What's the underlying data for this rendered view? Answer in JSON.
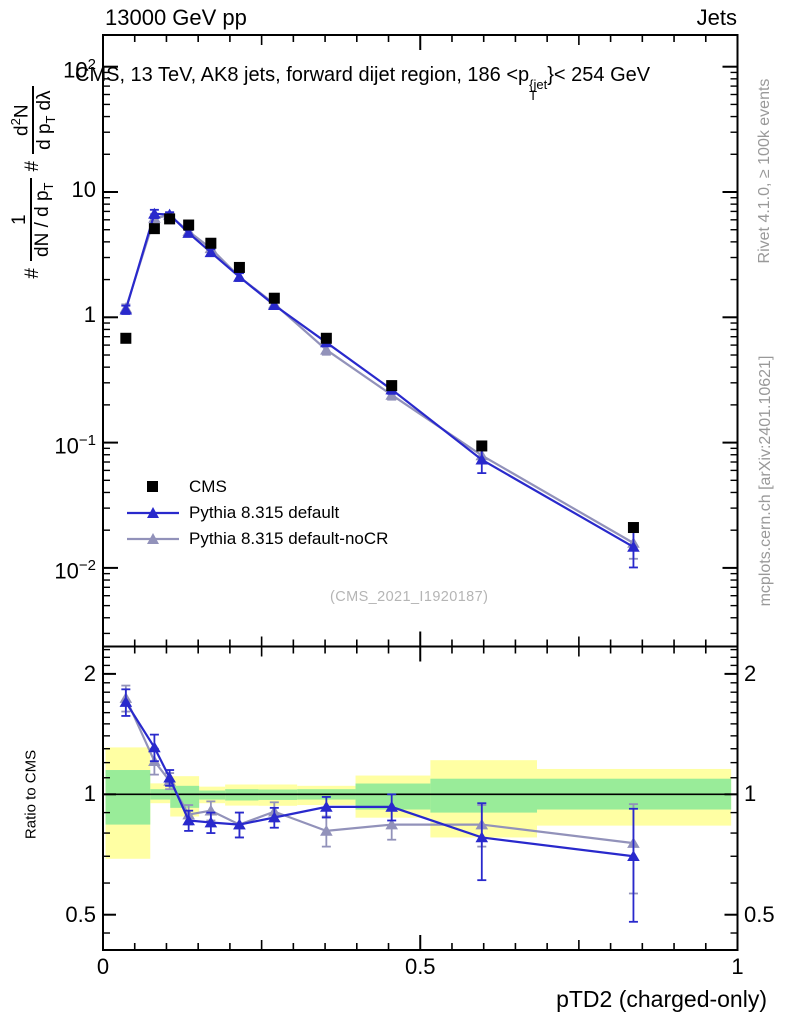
{
  "texts": {
    "header_left": "13000 GeV pp",
    "header_right": "Jets",
    "title_pre": "CMS, 13 TeV, AK8 jets, forward dijet region, 186 <p",
    "title_sup": "{jet",
    "title_sub": "T",
    "title_post": "}< 254 GeV",
    "ylabel": {
      "hash1": "#",
      "f1_num": "1",
      "f1_den_main": "dN / d p",
      "f1_den_sub": "T",
      "hash2": "#",
      "f2_num_main": "d",
      "f2_num_sup": "2",
      "f2_num_post": "N",
      "f2_den_main": "d p",
      "f2_den_sub": "T",
      "f2_den_post": "dλ"
    },
    "watermark": "(CMS_2021_I1920187)",
    "side_top": "Rivet 4.1.0, ≥ 100k events",
    "side_bottom": "mcplots.cern.ch [arXiv:2401.10621]"
  },
  "chart_data": {
    "type": "line",
    "title": "CMS, 13 TeV, AK8 jets, forward dijet region, 186 < pT{jet} < 254 GeV",
    "xlabel": "pTD2 (charged-only)",
    "ylabel_main": "# 1/(dN/dpT) # d2N/(dpT dλ)",
    "ylabel_ratio": "Ratio to CMS",
    "x": [
      0.036,
      0.081,
      0.105,
      0.135,
      0.17,
      0.215,
      0.27,
      0.352,
      0.455,
      0.597,
      0.836
    ],
    "series": [
      {
        "name": "CMS",
        "color": "#000000",
        "marker": "square",
        "values": [
          0.68,
          5.1,
          6.1,
          5.45,
          3.9,
          2.5,
          1.42,
          0.68,
          0.285,
          0.094,
          0.021
        ]
      },
      {
        "name": "Pythia 8.315 default",
        "color": "#2929cc",
        "marker": "triangle",
        "values": [
          1.15,
          6.7,
          6.6,
          4.7,
          3.3,
          2.1,
          1.25,
          0.63,
          0.265,
          0.073,
          0.0147
        ],
        "ratio": [
          1.7,
          1.31,
          1.1,
          0.86,
          0.85,
          0.84,
          0.875,
          0.93,
          0.93,
          0.78,
          0.7
        ],
        "ratio_err": [
          0.13,
          0.1,
          0.05,
          0.05,
          0.05,
          0.06,
          0.05,
          0.055,
          0.07,
          0.17,
          0.22
        ]
      },
      {
        "name": "Pythia 8.315 default-noCR",
        "color": "#9292ba",
        "marker": "triangle",
        "values": [
          1.18,
          6.2,
          6.5,
          4.85,
          3.55,
          2.1,
          1.28,
          0.55,
          0.24,
          0.079,
          0.0158
        ],
        "ratio": [
          1.74,
          1.21,
          1.08,
          0.89,
          0.91,
          0.84,
          0.905,
          0.81,
          0.84,
          0.84,
          0.755
        ],
        "ratio_err": [
          0.13,
          0.09,
          0.05,
          0.05,
          0.05,
          0.06,
          0.05,
          0.07,
          0.07,
          0.1,
          0.19
        ]
      }
    ],
    "uncertainty_bands": {
      "yellow_color": "#ffffa3",
      "green_color": "#99ec99",
      "segments": [
        {
          "x0": 0.004,
          "x1": 0.0745,
          "ylo": 0.69,
          "yhi": 1.31,
          "glo": 0.84,
          "ghi": 1.15
        },
        {
          "x0": 0.0745,
          "x1": 0.106,
          "ylo": 0.95,
          "yhi": 1.065,
          "glo": 0.97,
          "ghi": 1.03
        },
        {
          "x0": 0.106,
          "x1": 0.1515,
          "ylo": 0.88,
          "yhi": 1.11,
          "glo": 0.925,
          "ghi": 1.05
        },
        {
          "x0": 0.1515,
          "x1": 0.1925,
          "ylo": 0.95,
          "yhi": 1.045,
          "glo": 0.97,
          "ghi": 1.022
        },
        {
          "x0": 0.1925,
          "x1": 0.245,
          "ylo": 0.937,
          "yhi": 1.058,
          "glo": 0.965,
          "ghi": 1.03
        },
        {
          "x0": 0.245,
          "x1": 0.306,
          "ylo": 0.936,
          "yhi": 1.058,
          "glo": 0.968,
          "ghi": 1.028
        },
        {
          "x0": 0.306,
          "x1": 0.398,
          "ylo": 0.94,
          "yhi": 1.05,
          "glo": 0.97,
          "ghi": 1.03
        },
        {
          "x0": 0.398,
          "x1": 0.516,
          "ylo": 0.874,
          "yhi": 1.114,
          "glo": 0.916,
          "ghi": 1.064
        },
        {
          "x0": 0.516,
          "x1": 0.684,
          "ylo": 0.78,
          "yhi": 1.217,
          "glo": 0.9,
          "ghi": 1.094
        },
        {
          "x0": 0.684,
          "x1": 0.99,
          "ylo": 0.835,
          "yhi": 1.157,
          "glo": 0.916,
          "ghi": 1.094
        }
      ]
    },
    "axes": {
      "x": {
        "scale": "linear",
        "range": [
          0,
          1
        ],
        "minor_step": 0.05,
        "ticks": [
          {
            "v": 0,
            "label": "0"
          },
          {
            "v": 0.5,
            "label": "0.5"
          },
          {
            "v": 1,
            "label": "1"
          }
        ],
        "label": "pTD2 (charged-only)"
      },
      "y_main": {
        "scale": "log",
        "range": [
          0.0024,
          180
        ],
        "ticks": [
          {
            "v": 100,
            "base": "10",
            "exp": "2"
          },
          {
            "v": 10,
            "base": "10",
            "exp": ""
          },
          {
            "v": 1,
            "base": "1",
            "exp": ""
          },
          {
            "v": 0.1,
            "base": "10",
            "exp": "−1"
          },
          {
            "v": 0.01,
            "base": "10",
            "exp": "−2"
          }
        ]
      },
      "y_ratio": {
        "scale": "log",
        "range": [
          0.41,
          2.34
        ],
        "label": "Ratio to CMS",
        "ticks": [
          {
            "v": 2,
            "label": "2"
          },
          {
            "v": 1,
            "label": "1"
          },
          {
            "v": 0.5,
            "label": "0.5"
          }
        ]
      }
    },
    "legend_position": "middle-left"
  }
}
